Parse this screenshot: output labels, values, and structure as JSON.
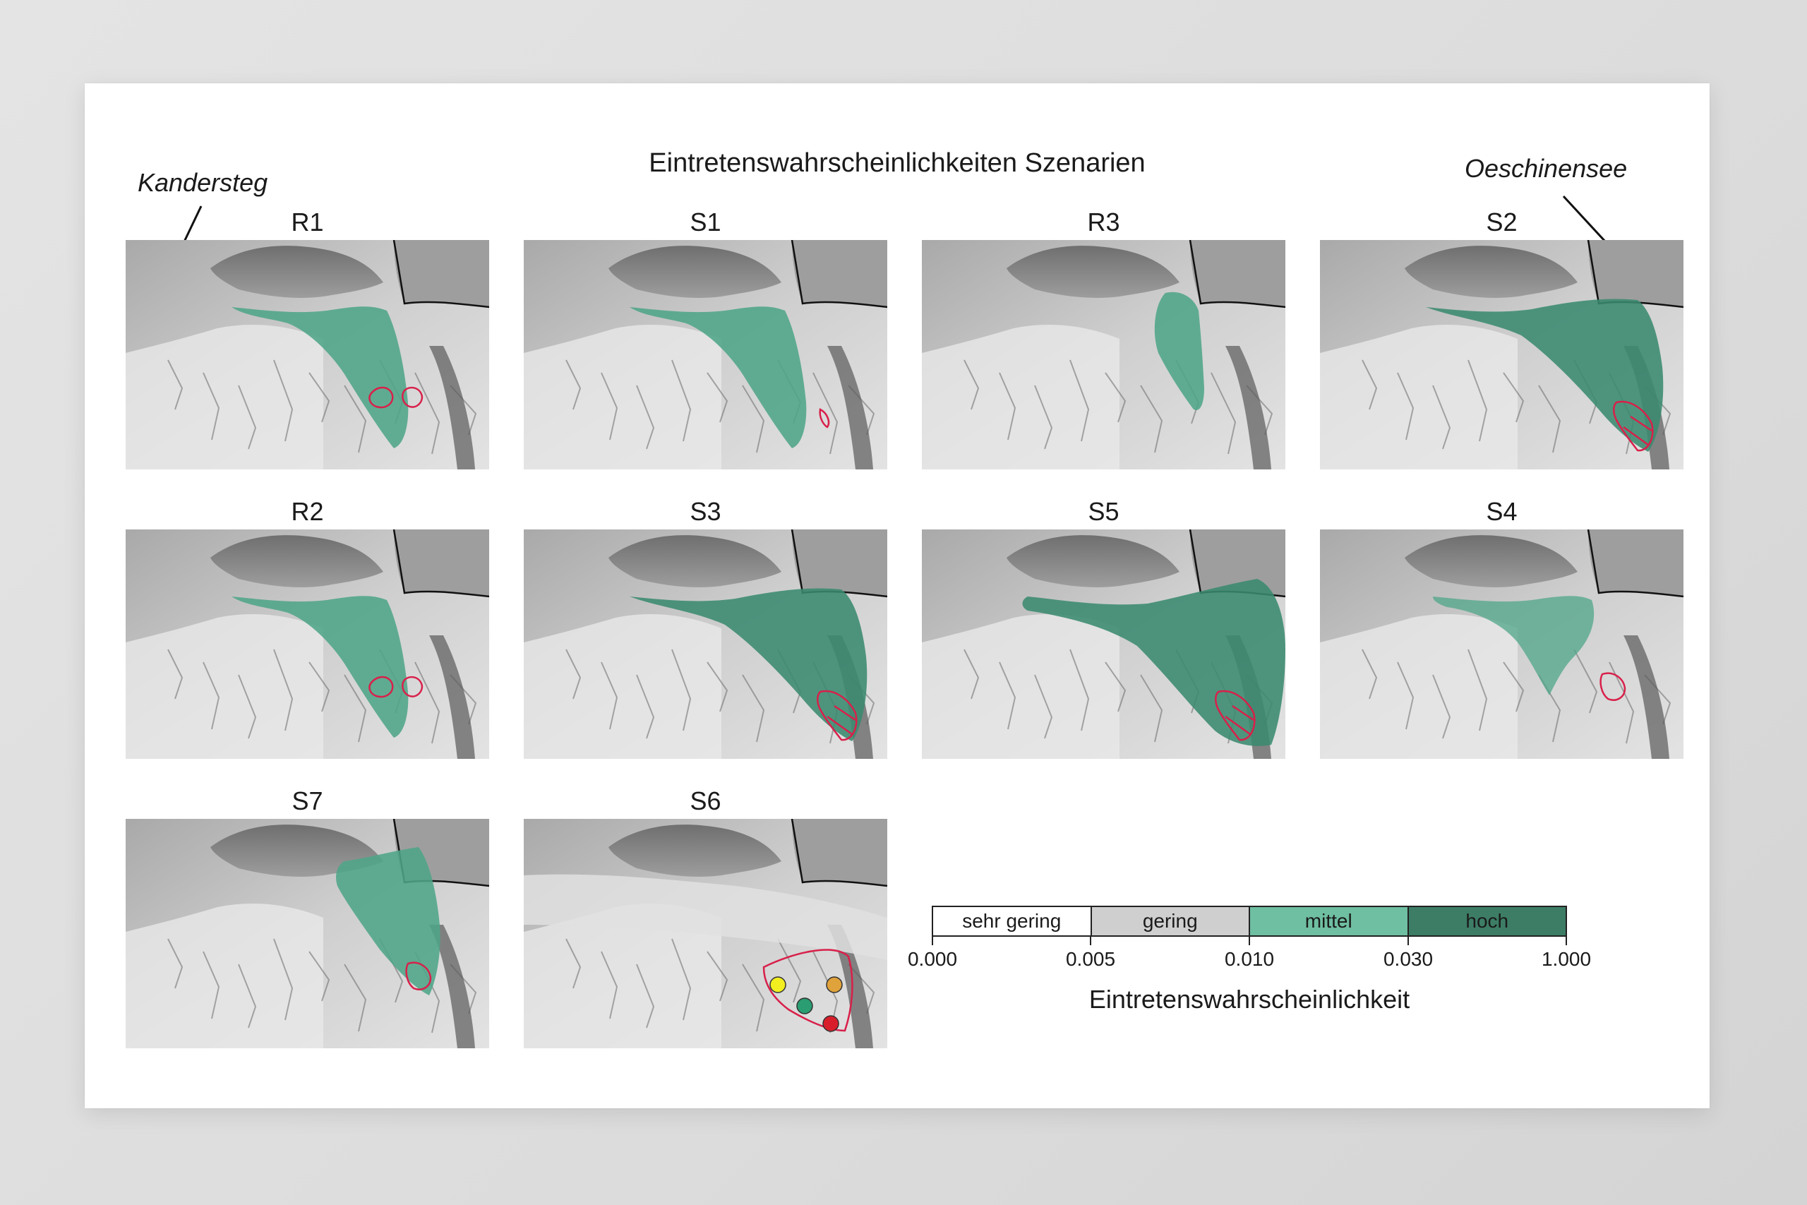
{
  "title": "Eintretenswahrscheinlichkeiten Szenarien",
  "places": {
    "left": "Kandersteg",
    "right": "Oeschinensee"
  },
  "panels": [
    {
      "label": "R1",
      "extent": "medium",
      "outline": "two-blobs"
    },
    {
      "label": "S1",
      "extent": "medium",
      "outline": "small-tail"
    },
    {
      "label": "R3",
      "extent": "small",
      "outline": "none"
    },
    {
      "label": "S2",
      "extent": "large",
      "outline": "tail"
    },
    {
      "label": "R2",
      "extent": "medium",
      "outline": "two-blobs"
    },
    {
      "label": "S3",
      "extent": "large",
      "outline": "tail"
    },
    {
      "label": "S5",
      "extent": "very-large",
      "outline": "tail"
    },
    {
      "label": "S4",
      "extent": "medium-light",
      "outline": "single-blob"
    },
    {
      "label": "S7",
      "extent": "upper-only",
      "outline": "single-blob"
    },
    {
      "label": "S6",
      "extent": "none",
      "outline": "dots"
    }
  ],
  "legend": {
    "title": "Eintretenswahrscheinlichkeit",
    "classes": [
      {
        "label": "sehr gering",
        "color": "#ffffff"
      },
      {
        "label": "gering",
        "color": "#cfcfcf"
      },
      {
        "label": "mittel",
        "color": "#6fbfa2"
      },
      {
        "label": "hoch",
        "color": "#3d7d66"
      }
    ],
    "ticks": [
      "0.000",
      "0.005",
      "0.010",
      "0.030",
      "1.000"
    ]
  },
  "colors": {
    "zone": "#4fa588",
    "zone_dark": "#3a8a70",
    "outline": "#d8204a",
    "dot_yellow": "#f2ee1f",
    "dot_orange": "#e0a23a",
    "dot_green": "#2a9d72",
    "dot_red": "#d81e2a"
  }
}
